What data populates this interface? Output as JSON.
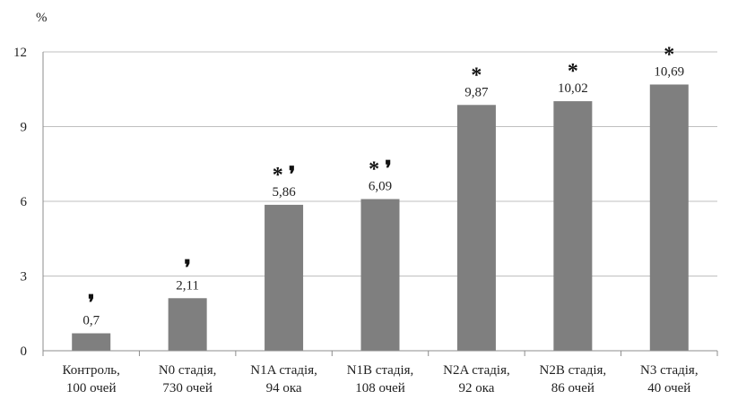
{
  "chart_data": {
    "type": "bar",
    "ylabel": "%",
    "ylim": [
      0,
      12
    ],
    "yticks": [
      "0",
      "3",
      "6",
      "9",
      "12"
    ],
    "grid": "horizontal",
    "categories": [
      [
        "Контроль,",
        "100 очей"
      ],
      [
        "N0 стадія,",
        "730 очей"
      ],
      [
        "N1A стадія,",
        "94 ока"
      ],
      [
        "N1B стадія,",
        "108 очей"
      ],
      [
        "N2A стадія,",
        "92 ока"
      ],
      [
        "N2B стадія,",
        "86 очей"
      ],
      [
        "N3 стадія,",
        "40 очей"
      ]
    ],
    "values": [
      0.7,
      2.11,
      5.86,
      6.09,
      9.87,
      10.02,
      10.69
    ],
    "value_labels": [
      "0,7",
      "2,11",
      "5,86",
      "6,09",
      "9,87",
      "10,02",
      "10,69"
    ],
    "markers": [
      "❜",
      "❜",
      "* ❜",
      "* ❜",
      "*",
      "*",
      "*"
    ],
    "bar_color": "#7f7f7f",
    "grid_color": "#bfbfbf",
    "axis_color": "#8c8c8c"
  }
}
